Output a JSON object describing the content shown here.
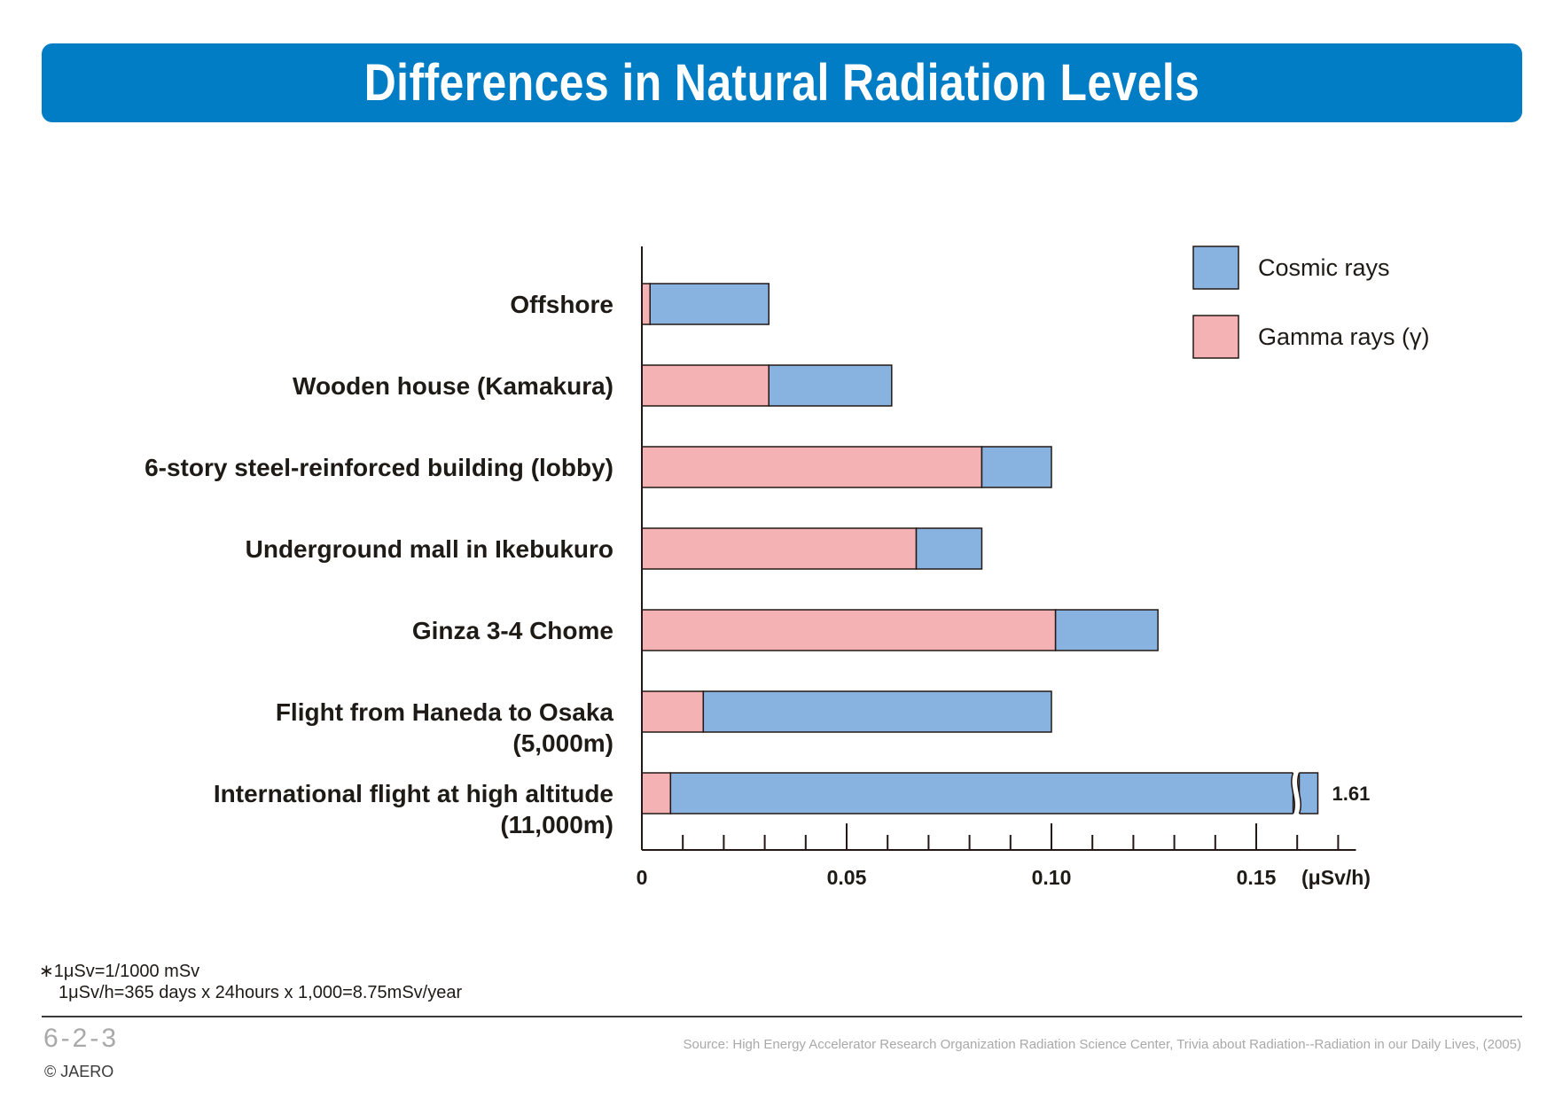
{
  "title": "Differences in Natural Radiation Levels",
  "chart_data": {
    "type": "bar",
    "orientation": "horizontal",
    "stacked": true,
    "categories": [
      [
        "Offshore"
      ],
      [
        "Wooden house (Kamakura)"
      ],
      [
        "6-story steel-reinforced building (lobby)"
      ],
      [
        "Underground mall in Ikebukuro"
      ],
      [
        "Ginza 3-4 Chome"
      ],
      [
        "Flight from Haneda to Osaka",
        "(5,000m)"
      ],
      [
        "International flight at high altitude",
        "(11,000m)"
      ]
    ],
    "series": [
      {
        "name": "Gamma rays (γ)",
        "color": "#f4b2b4",
        "values": [
          0.002,
          0.031,
          0.083,
          0.067,
          0.101,
          0.015,
          0.007
        ]
      },
      {
        "name": "Cosmic rays",
        "color": "#88b2e0",
        "values": [
          0.029,
          0.03,
          0.017,
          0.016,
          0.025,
          0.085,
          1.603
        ]
      }
    ],
    "xlim": [
      0,
      0.175
    ],
    "axis_break": {
      "start": 0.159,
      "end": 0.1605
    },
    "xticks_major": [
      0,
      0.05,
      0.1,
      0.15
    ],
    "xtick_labels": [
      "0",
      "0.05",
      "0.10",
      "0.15"
    ],
    "xtick_minor_step": 0.01,
    "xunit": "(μSv/h)",
    "data_labels": [
      null,
      null,
      null,
      null,
      null,
      null,
      "1.61"
    ],
    "legend": [
      {
        "label": "Cosmic rays",
        "color": "#88b2e0"
      },
      {
        "label": "Gamma rays (γ)",
        "color": "#f4b2b4"
      }
    ],
    "legend_position": "top-right",
    "grid": false
  },
  "footnotes": {
    "line1": "∗1μSv=1/1000 mSv",
    "line2": "1μSv/h=365 days x 24hours x 1,000=8.75mSv/year"
  },
  "footer": {
    "slide_number": "6-2-3",
    "copyright": "© JAERO",
    "source": "Source: High Energy Accelerator Research Organization Radiation Science Center, Trivia about Radiation--Radiation in our Daily Lives, (2005)"
  }
}
